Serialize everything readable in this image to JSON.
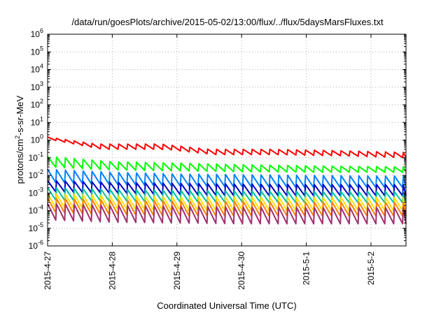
{
  "chart_data": {
    "type": "line",
    "title": "/data/run/goesPlots/archive/2015-05-02/13:00/flux/../flux/5daysMarsFluxes.txt",
    "xlabel": "Coordinated Universal Time (UTC)",
    "ylabel": {
      "base": "protons/cm",
      "sup": "2",
      "rest": "-s-sr-MeV"
    },
    "yscale": "log",
    "ylim_exp": [
      -6,
      6
    ],
    "y_ticks": [
      {
        "base": "10",
        "exp": "-6"
      },
      {
        "base": "10",
        "exp": "-5"
      },
      {
        "base": "10",
        "exp": "-4"
      },
      {
        "base": "10",
        "exp": "-3"
      },
      {
        "base": "10",
        "exp": "-2"
      },
      {
        "base": "10",
        "exp": "-1"
      },
      {
        "base": "10",
        "exp": "0"
      },
      {
        "base": "10",
        "exp": "1"
      },
      {
        "base": "10",
        "exp": "2"
      },
      {
        "base": "10",
        "exp": "3"
      },
      {
        "base": "10",
        "exp": "4"
      },
      {
        "base": "10",
        "exp": "5"
      },
      {
        "base": "10",
        "exp": "6"
      }
    ],
    "x_range": [
      "2015-04-27 00:00",
      "2015-05-02 13:00"
    ],
    "x_ticks": [
      "2015-4-27",
      "2015-4-28",
      "2015-4-29",
      "2015-4-30",
      "2015-5-1",
      "2015-5-2"
    ],
    "grid": true,
    "sawtooth_period_hours": 3.3,
    "series": [
      {
        "color": "#ff0000",
        "x": [
          "2015-04-27 00:00",
          "2015-04-27 18:00",
          "2015-04-28 18:00",
          "2015-04-29 12:00",
          "2015-04-30 12:00",
          "2015-05-01 12:00",
          "2015-05-02 13:00"
        ],
        "top": [
          1.5,
          0.6,
          0.6,
          0.3,
          0.3,
          0.25,
          0.2
        ],
        "bottom": [
          1.0,
          0.3,
          0.3,
          0.15,
          0.15,
          0.13,
          0.1
        ]
      },
      {
        "color": "#00ff00",
        "x": [
          "2015-04-27 00:00",
          "2015-04-28 00:00",
          "2015-04-29 00:00",
          "2015-04-30 00:00",
          "2015-05-01 00:00",
          "2015-05-02 13:00"
        ],
        "top": [
          0.12,
          0.06,
          0.05,
          0.04,
          0.035,
          0.03
        ],
        "bottom": [
          0.03,
          0.02,
          0.018,
          0.016,
          0.015,
          0.015
        ]
      },
      {
        "color": "#0080ff",
        "x": [
          "2015-04-27 00:00",
          "2015-04-28 00:00",
          "2015-04-29 00:00",
          "2015-04-30 00:00",
          "2015-05-01 00:00",
          "2015-05-02 13:00"
        ],
        "top": [
          0.022,
          0.015,
          0.012,
          0.011,
          0.01,
          0.009
        ],
        "bottom": [
          0.004,
          0.003,
          0.0025,
          0.0022,
          0.002,
          0.002
        ]
      },
      {
        "color": "#0000c0",
        "x": [
          "2015-04-27 00:00",
          "2015-04-28 00:00",
          "2015-04-29 00:00",
          "2015-04-30 00:00",
          "2015-05-01 00:00",
          "2015-05-02 13:00"
        ],
        "top": [
          0.005,
          0.004,
          0.0035,
          0.0032,
          0.003,
          0.003
        ],
        "bottom": [
          0.0012,
          0.001,
          0.0008,
          0.0007,
          0.0007,
          0.0007
        ]
      },
      {
        "color": "#00c0a0",
        "x": [
          "2015-04-27 00:00",
          "2015-04-28 00:00",
          "2015-04-29 00:00",
          "2015-04-30 00:00",
          "2015-05-01 00:00",
          "2015-05-02 13:00"
        ],
        "top": [
          0.002,
          0.0016,
          0.0014,
          0.0013,
          0.0012,
          0.0012
        ],
        "bottom": [
          0.0004,
          0.00035,
          0.0003,
          0.0003,
          0.00028,
          0.00028
        ]
      },
      {
        "color": "#ffe000",
        "x": [
          "2015-04-27 00:00",
          "2015-04-28 00:00",
          "2015-04-29 00:00",
          "2015-04-30 00:00",
          "2015-05-01 00:00",
          "2015-05-02 13:00"
        ],
        "top": [
          0.0009,
          0.0007,
          0.0006,
          0.0006,
          0.00055,
          0.00055
        ],
        "bottom": [
          0.00015,
          0.00012,
          0.0001,
          0.0001,
          0.0001,
          0.0001
        ]
      },
      {
        "color": "#ff8000",
        "x": [
          "2015-04-27 00:00",
          "2015-04-28 00:00",
          "2015-04-29 00:00",
          "2015-04-30 00:00",
          "2015-05-01 00:00",
          "2015-05-02 13:00"
        ],
        "top": [
          0.0005,
          0.0004,
          0.00035,
          0.00033,
          0.0003,
          0.0003
        ],
        "bottom": [
          8e-05,
          6e-05,
          5e-05,
          5e-05,
          5e-05,
          5e-05
        ]
      },
      {
        "color": "#a03070",
        "x": [
          "2015-04-27 00:00",
          "2015-04-28 00:00",
          "2015-04-29 00:00",
          "2015-04-30 00:00",
          "2015-05-01 00:00",
          "2015-05-02 13:00"
        ],
        "top": [
          0.00025,
          0.0002,
          0.00018,
          0.00016,
          0.00015,
          0.00015
        ],
        "bottom": [
          3e-05,
          2.2e-05,
          2e-05,
          1.8e-05,
          1.8e-05,
          1.8e-05
        ]
      }
    ]
  }
}
